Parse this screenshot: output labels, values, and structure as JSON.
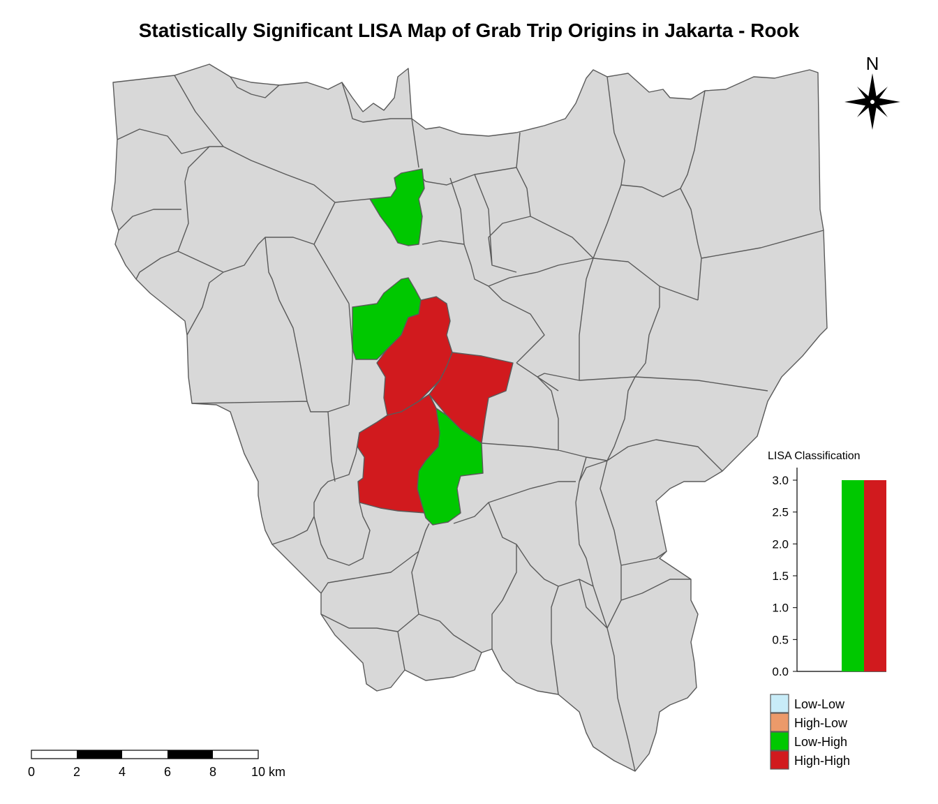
{
  "title": "Statistically Significant LISA Map of Grab Trip Origins in Jakarta - Rook",
  "north_label": "N",
  "histogram": {
    "title": "LISA Classification",
    "y_ticks": [
      "3.0",
      "2.5",
      "2.0",
      "1.5",
      "1.0",
      "0.5",
      "0.0"
    ],
    "bars": [
      {
        "class": "Low-High",
        "value": 3.0,
        "color": "#00c800"
      },
      {
        "class": "High-High",
        "value": 3.0,
        "color": "#d11a1e"
      }
    ]
  },
  "legend": {
    "items": [
      {
        "label": "Low-Low",
        "color": "#c8ecf8"
      },
      {
        "label": "High-Low",
        "color": "#ec9a6a"
      },
      {
        "label": "Low-High",
        "color": "#00c800"
      },
      {
        "label": "High-High",
        "color": "#d11a1e"
      }
    ]
  },
  "scale_bar": {
    "labels": [
      "0",
      "2",
      "4",
      "6",
      "8",
      "10 km"
    ]
  },
  "colors": {
    "not_significant": "#d8d8d8",
    "boundary": "#5a5a5a"
  }
}
